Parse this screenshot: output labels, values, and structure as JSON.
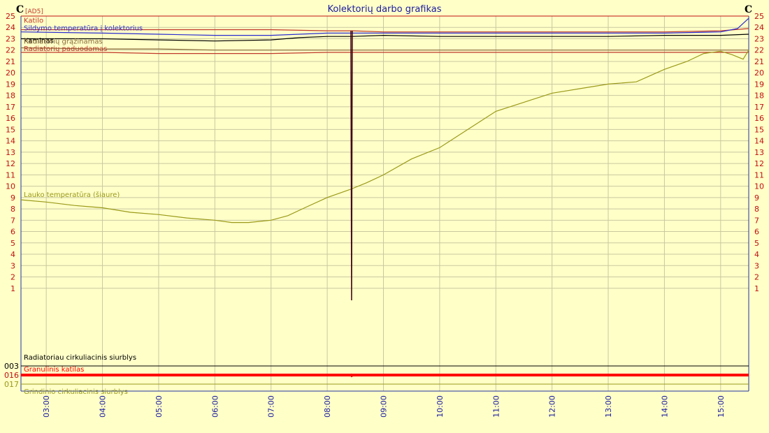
{
  "chart_data": {
    "type": "line",
    "title": "Kolektorių darbo grafikas",
    "y_unit_left": "C",
    "y_unit_right": "C",
    "source_tag": "[AD5]",
    "ylim": [
      0,
      25
    ],
    "y_ticks": [
      "1",
      "2",
      "3",
      "4",
      "5",
      "6",
      "7",
      "8",
      "9",
      "10",
      "11",
      "12",
      "13",
      "14",
      "15",
      "16",
      "17",
      "18",
      "19",
      "20",
      "21",
      "22",
      "23",
      "24",
      "25"
    ],
    "x_ticks": [
      "03:00",
      "04:00",
      "05:00",
      "06:00",
      "07:00",
      "08:00",
      "09:00",
      "10:00",
      "11:00",
      "12:00",
      "13:00",
      "14:00",
      "15:00"
    ],
    "xlim": [
      2.55,
      15.5
    ],
    "grid": true,
    "series": [
      {
        "name": "Katilo",
        "color": "#c0392b",
        "x": [
          2.55,
          4,
          5,
          6,
          7,
          8,
          8.4,
          8.45,
          9,
          10,
          11,
          12,
          13,
          14,
          15,
          15.5
        ],
        "y": [
          23.8,
          23.8,
          23.8,
          23.8,
          23.8,
          23.7,
          23.7,
          23.7,
          23.6,
          23.6,
          23.6,
          23.6,
          23.6,
          23.6,
          23.7,
          23.9
        ]
      },
      {
        "name": "Sildymo temperatūra į kolektorius",
        "color": "#2b2bd0",
        "x": [
          2.55,
          4,
          5,
          6,
          7,
          8,
          8.4,
          8.45,
          9,
          10,
          11,
          12,
          13,
          14,
          15,
          15.3,
          15.5
        ],
        "y": [
          23.6,
          23.5,
          23.4,
          23.3,
          23.3,
          23.5,
          23.5,
          23.5,
          23.5,
          23.5,
          23.5,
          23.5,
          23.5,
          23.5,
          23.6,
          23.9,
          24.8
        ]
      },
      {
        "name": "Kaminas",
        "color": "#000000",
        "x": [
          2.55,
          4,
          5,
          6,
          7,
          7.5,
          8,
          8.4,
          8.45,
          9,
          10,
          11,
          12,
          13,
          14,
          15,
          15.5
        ],
        "y": [
          23.0,
          23.0,
          22.9,
          22.8,
          22.9,
          23.1,
          23.2,
          23.2,
          23.2,
          23.3,
          23.2,
          23.2,
          23.2,
          23.2,
          23.3,
          23.3,
          23.4
        ]
      },
      {
        "name": "Radiatorių grąžinamas",
        "color": "#8a6a3a",
        "x": [
          2.55,
          4,
          5,
          6,
          7,
          8,
          8.4,
          8.45,
          9,
          10,
          11,
          12,
          13,
          14,
          15,
          15.5
        ],
        "y": [
          22.2,
          22.1,
          22.1,
          22.0,
          22.0,
          22.0,
          22.0,
          22.0,
          22.0,
          22.0,
          22.0,
          22.0,
          22.0,
          22.0,
          22.0,
          22.0
        ]
      },
      {
        "name": "Radiatorių paduodamas",
        "color": "#c0392b",
        "x": [
          2.55,
          4,
          5,
          6,
          7,
          8,
          8.4,
          8.45,
          9,
          10,
          11,
          12,
          13,
          14,
          15,
          15.5
        ],
        "y": [
          21.8,
          21.8,
          21.7,
          21.7,
          21.7,
          21.8,
          21.8,
          21.8,
          21.8,
          21.8,
          21.8,
          21.8,
          21.8,
          21.8,
          21.8,
          21.8
        ]
      },
      {
        "name": "Lauko temperatūra (šiaure)",
        "color": "#9a9a1a",
        "x": [
          2.55,
          3,
          3.5,
          4,
          4.5,
          5,
          5.5,
          6,
          6.3,
          6.6,
          7,
          7.3,
          7.6,
          8,
          8.4,
          8.7,
          9,
          9.5,
          10,
          10.5,
          11,
          11.5,
          12,
          12.5,
          13,
          13.5,
          14,
          14.4,
          14.7,
          15,
          15.2,
          15.4,
          15.5
        ],
        "y": [
          8.8,
          8.6,
          8.3,
          8.1,
          7.7,
          7.5,
          7.2,
          7.0,
          6.8,
          6.8,
          7.0,
          7.4,
          8.1,
          9.0,
          9.7,
          10.3,
          11.0,
          12.4,
          13.4,
          15.0,
          16.6,
          17.4,
          18.2,
          18.6,
          19.0,
          19.2,
          20.3,
          21.0,
          21.7,
          21.9,
          21.6,
          21.2,
          22.0
        ]
      }
    ],
    "drop_at_x": 8.42,
    "digital": [
      {
        "id": "003",
        "name": "Radiatoriau cirkuliacinis siurblys",
        "color": "#000000"
      },
      {
        "id": "016",
        "name": "Granulinis katilas",
        "color": "#ff0000"
      },
      {
        "id": "017",
        "name": "Grindinio cirkuliacinis siurblys",
        "color": "#9a9a1a"
      }
    ]
  }
}
